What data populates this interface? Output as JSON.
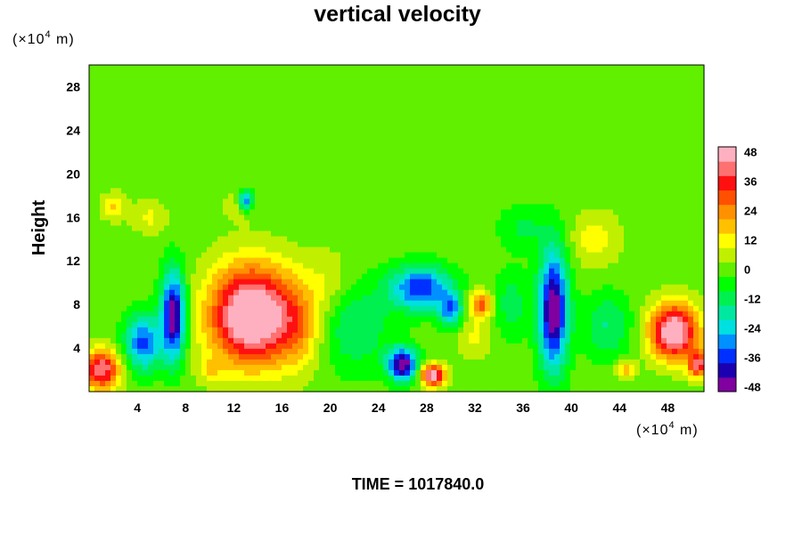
{
  "chart_data": {
    "type": "heatmap",
    "title": "vertical velocity",
    "ylabel": "Height",
    "xlabel": "",
    "x_unit": {
      "prefix": "(×10",
      "exp": "4",
      "suffix": " m)"
    },
    "y_unit": {
      "prefix": "(×10",
      "exp": "4",
      "suffix": " m)"
    },
    "xlim": [
      0,
      51
    ],
    "ylim": [
      0,
      30
    ],
    "x_ticks": [
      4,
      8,
      12,
      16,
      20,
      24,
      28,
      32,
      36,
      40,
      44,
      48
    ],
    "y_ticks": [
      4,
      8,
      12,
      16,
      20,
      24,
      28
    ],
    "colorbar": {
      "range": [
        -50,
        50
      ],
      "ticks": [
        48,
        36,
        24,
        12,
        0,
        -12,
        -24,
        -36,
        -48
      ],
      "colors": [
        "#8000a0",
        "#1a00b0",
        "#0030ff",
        "#0090ff",
        "#00e0e0",
        "#00e8a0",
        "#00f050",
        "#00ff00",
        "#60f000",
        "#c0f000",
        "#ffff00",
        "#ffc000",
        "#ff9000",
        "#ff5000",
        "#ff1010",
        "#ff7070",
        "#ffb0c0"
      ]
    },
    "background_value": 0,
    "features": [
      {
        "x": 1,
        "y": 2,
        "value": 45,
        "sx": 1.5,
        "sy": 1.8
      },
      {
        "x": 4.5,
        "y": 4.5,
        "value": -35,
        "sx": 1.5,
        "sy": 2.5
      },
      {
        "x": 7,
        "y": 7,
        "value": -50,
        "sx": 1.0,
        "sy": 4.0
      },
      {
        "x": 5,
        "y": 16,
        "value": 10,
        "sx": 1.5,
        "sy": 1.5
      },
      {
        "x": 2,
        "y": 17,
        "value": 15,
        "sx": 1.0,
        "sy": 1.2
      },
      {
        "x": 13.5,
        "y": 7,
        "value": 60,
        "sx": 3.5,
        "sy": 4.5
      },
      {
        "x": 17.5,
        "y": 6,
        "value": 15,
        "sx": 2.0,
        "sy": 4.0
      },
      {
        "x": 13,
        "y": 17.5,
        "value": -40,
        "sx": 0.6,
        "sy": 0.9
      },
      {
        "x": 12.5,
        "y": 17,
        "value": 10,
        "sx": 1.2,
        "sy": 1.2
      },
      {
        "x": 22,
        "y": 6,
        "value": -15,
        "sx": 3.0,
        "sy": 4.0
      },
      {
        "x": 26,
        "y": 2.5,
        "value": -50,
        "sx": 1.2,
        "sy": 1.5
      },
      {
        "x": 28.5,
        "y": 1.5,
        "value": 50,
        "sx": 1.0,
        "sy": 1.0
      },
      {
        "x": 27.5,
        "y": 9.5,
        "value": -38,
        "sx": 2.5,
        "sy": 2.0
      },
      {
        "x": 30,
        "y": 7.5,
        "value": -30,
        "sx": 1.0,
        "sy": 1.5
      },
      {
        "x": 32.5,
        "y": 8,
        "value": 30,
        "sx": 1.0,
        "sy": 1.2
      },
      {
        "x": 32,
        "y": 5,
        "value": 10,
        "sx": 1.5,
        "sy": 2.0
      },
      {
        "x": 38.5,
        "y": 7.5,
        "value": -50,
        "sx": 1.2,
        "sy": 5.5
      },
      {
        "x": 35,
        "y": 8,
        "value": -12,
        "sx": 1.5,
        "sy": 3.0
      },
      {
        "x": 42,
        "y": 14,
        "value": 12,
        "sx": 2.0,
        "sy": 2.5
      },
      {
        "x": 48.5,
        "y": 5.5,
        "value": 55,
        "sx": 2.0,
        "sy": 2.5
      },
      {
        "x": 43,
        "y": 6,
        "value": -15,
        "sx": 2.0,
        "sy": 3.0
      },
      {
        "x": 44.5,
        "y": 2,
        "value": 22,
        "sx": 0.8,
        "sy": 0.8
      },
      {
        "x": 50.5,
        "y": 2.5,
        "value": 40,
        "sx": 0.8,
        "sy": 1.2
      },
      {
        "x": 10,
        "y": 2,
        "value": 10,
        "sx": 1.0,
        "sy": 1.2
      },
      {
        "x": 20,
        "y": 10,
        "value": 8,
        "sx": 2.0,
        "sy": 3.0
      },
      {
        "x": 36,
        "y": 15,
        "value": -10,
        "sx": 2.0,
        "sy": 2.0
      }
    ],
    "time_label": "TIME = 1017840.0"
  }
}
